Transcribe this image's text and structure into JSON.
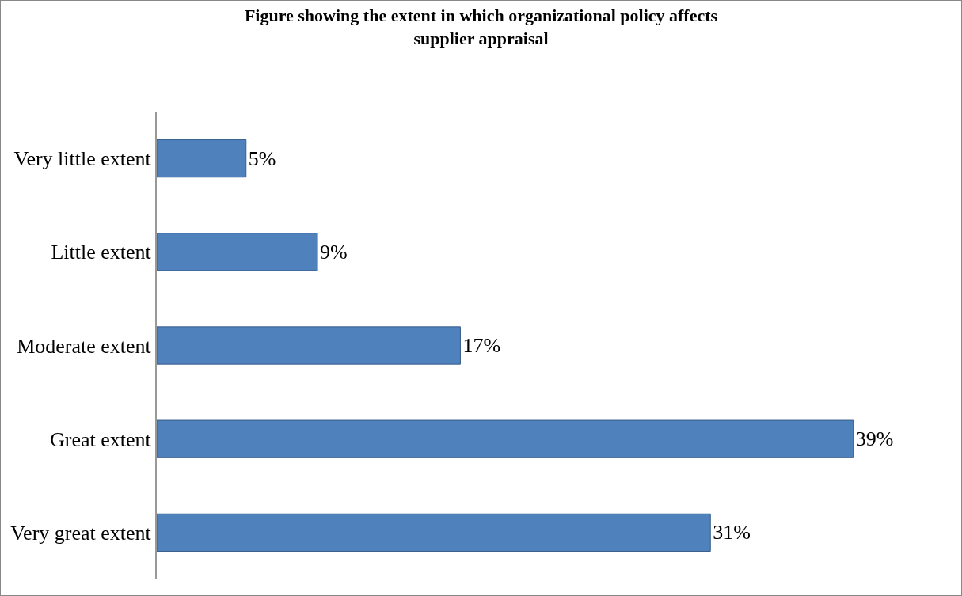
{
  "chart_data": {
    "type": "bar",
    "orientation": "horizontal",
    "title": "Figure showing the extent in which organizational policy affects supplier appraisal",
    "categories": [
      "Very little extent",
      "Little extent",
      "Moderate extent",
      "Great extent",
      "Very great extent"
    ],
    "values": [
      5,
      9,
      17,
      39,
      31
    ],
    "value_labels": [
      "5%",
      "9%",
      "17%",
      "39%",
      "31%"
    ],
    "color": "#4f81bd"
  }
}
